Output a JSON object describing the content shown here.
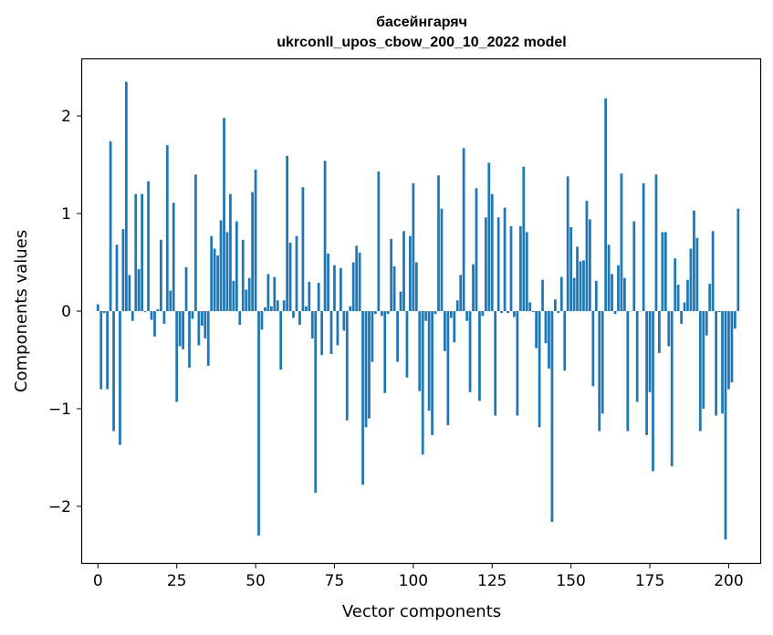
{
  "chart_data": {
    "type": "bar",
    "title": "басейнгаряч",
    "subtitle": "ukrconll_upos_cbow_200_10_2022 model",
    "xlabel": "Vector components",
    "ylabel": "Components values",
    "xlim": [
      -5,
      210
    ],
    "ylim": [
      -2.58,
      2.58
    ],
    "xticks": [
      0,
      25,
      50,
      75,
      100,
      125,
      150,
      175,
      200
    ],
    "yticks": [
      -2,
      -1,
      0,
      1,
      2
    ],
    "ytick_labels": [
      "−2",
      "−1",
      "0",
      "1",
      "2"
    ],
    "bar_color": "#1f77b4",
    "grid": false,
    "values": [
      0.07,
      -0.8,
      -0.02,
      -0.8,
      1.74,
      -1.23,
      0.68,
      -1.37,
      0.84,
      2.35,
      0.37,
      -0.1,
      1.2,
      0.43,
      1.2,
      -0.01,
      1.33,
      -0.09,
      -0.26,
      0.02,
      0.73,
      -0.13,
      1.7,
      0.21,
      1.11,
      -0.93,
      -0.36,
      -0.39,
      0.45,
      -0.58,
      -0.08,
      1.4,
      -0.35,
      -0.15,
      -0.28,
      -0.56,
      0.77,
      0.64,
      0.57,
      0.93,
      1.98,
      0.81,
      1.2,
      0.31,
      0.92,
      -0.14,
      0.73,
      0.22,
      0.34,
      1.22,
      1.45,
      -2.3,
      -0.19,
      0.04,
      0.38,
      0.05,
      0.35,
      0.11,
      -0.6,
      0.11,
      1.59,
      0.7,
      -0.07,
      0.77,
      -0.14,
      1.27,
      0.05,
      0.3,
      -0.28,
      -1.86,
      0.29,
      -0.45,
      1.54,
      0.59,
      -0.44,
      0.47,
      -0.35,
      0.44,
      -0.2,
      -1.12,
      0.05,
      0.5,
      0.67,
      0.6,
      -1.78,
      -1.19,
      -1.1,
      -0.52,
      -0.03,
      1.43,
      -0.05,
      -0.84,
      -0.03,
      0.74,
      0.46,
      -0.52,
      0.2,
      0.82,
      -0.68,
      0.77,
      1.31,
      0.5,
      -0.82,
      -1.47,
      -0.1,
      -1.02,
      -1.27,
      -0.03,
      1.39,
      1.05,
      -0.41,
      -1.17,
      -0.07,
      -0.32,
      0.11,
      0.37,
      1.67,
      -0.1,
      -0.83,
      0.48,
      1.26,
      -0.92,
      -0.05,
      0.96,
      1.52,
      1.2,
      -1.07,
      0.96,
      -0.02,
      1.06,
      -0.02,
      0.87,
      -0.06,
      -1.07,
      0.87,
      1.48,
      0.81,
      0.09,
      -0.01,
      -0.38,
      -1.19,
      0.32,
      -0.33,
      -0.59,
      -2.16,
      0.12,
      -0.02,
      0.35,
      -0.61,
      1.38,
      0.86,
      0.34,
      0.66,
      0.51,
      0.52,
      1.13,
      0.94,
      -0.77,
      0.31,
      -1.23,
      -1.05,
      2.18,
      0.68,
      0.38,
      -0.03,
      0.47,
      1.41,
      0.34,
      -1.23,
      0.0,
      0.92,
      -0.93,
      0.0,
      1.31,
      -1.27,
      -0.83,
      -1.64,
      1.4,
      -0.43,
      0.81,
      0.81,
      -0.36,
      -1.59,
      0.54,
      0.27,
      -0.13,
      0.09,
      0.32,
      0.64,
      1.03,
      0.75,
      -1.23,
      -1.0,
      -0.25,
      0.28,
      0.82,
      -1.07,
      -0.01,
      -1.05,
      -2.34,
      -0.8,
      -0.73,
      -0.18,
      1.05
    ]
  }
}
